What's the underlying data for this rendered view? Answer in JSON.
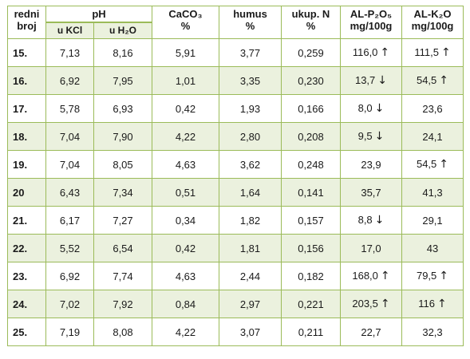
{
  "header": {
    "redni_broj": [
      "redni",
      "broj"
    ],
    "ph": "pH",
    "ph_kcl": "u KCl",
    "ph_h2o": "u H₂O",
    "caco3": [
      "CaCO₃",
      "%"
    ],
    "humus": [
      "humus",
      "%"
    ],
    "ukup_n": [
      "ukup. N",
      "%"
    ],
    "al_p2o5": [
      "AL-P₂O₅",
      "mg/100g"
    ],
    "al_k2o": [
      "AL-K₂O",
      "mg/100g"
    ]
  },
  "rows": [
    {
      "broj": "15.",
      "kcl": "7,13",
      "h2o": "8,16",
      "caco3": "5,91",
      "humus": "3,77",
      "n": "0,259",
      "p": "116,0",
      "p_arrow": "↑",
      "k": "111,5",
      "k_arrow": "↑"
    },
    {
      "broj": "16.",
      "kcl": "6,92",
      "h2o": "7,95",
      "caco3": "1,01",
      "humus": "3,35",
      "n": "0,230",
      "p": "13,7",
      "p_arrow": "↓",
      "k": "54,5",
      "k_arrow": "↑"
    },
    {
      "broj": "17.",
      "kcl": "5,78",
      "h2o": "6,93",
      "caco3": "0,42",
      "humus": "1,93",
      "n": "0,166",
      "p": "8,0",
      "p_arrow": "↓",
      "k": "23,6",
      "k_arrow": ""
    },
    {
      "broj": "18.",
      "kcl": "7,04",
      "h2o": "7,90",
      "caco3": "4,22",
      "humus": "2,80",
      "n": "0,208",
      "p": "9,5",
      "p_arrow": "↓",
      "k": "24,1",
      "k_arrow": ""
    },
    {
      "broj": "19.",
      "kcl": "7,04",
      "h2o": "8,05",
      "caco3": "4,63",
      "humus": "3,62",
      "n": "0,248",
      "p": "23,9",
      "p_arrow": "",
      "k": "54,5",
      "k_arrow": "↑"
    },
    {
      "broj": "20",
      "kcl": "6,43",
      "h2o": "7,34",
      "caco3": "0,51",
      "humus": "1,64",
      "n": "0,141",
      "p": "35,7",
      "p_arrow": "",
      "k": "41,3",
      "k_arrow": ""
    },
    {
      "broj": "21.",
      "kcl": "6,17",
      "h2o": "7,27",
      "caco3": "0,34",
      "humus": "1,82",
      "n": "0,157",
      "p": "8,8",
      "p_arrow": "↓",
      "k": "29,1",
      "k_arrow": ""
    },
    {
      "broj": "22.",
      "kcl": "5,52",
      "h2o": "6,54",
      "caco3": "0,42",
      "humus": "1,81",
      "n": "0,156",
      "p": "17,0",
      "p_arrow": "",
      "k": "43",
      "k_arrow": ""
    },
    {
      "broj": "23.",
      "kcl": "6,92",
      "h2o": "7,74",
      "caco3": "4,63",
      "humus": "2,44",
      "n": "0,182",
      "p": "168,0",
      "p_arrow": "↑",
      "k": "79,5",
      "k_arrow": "↑"
    },
    {
      "broj": "24.",
      "kcl": "7,02",
      "h2o": "7,92",
      "caco3": "0,84",
      "humus": "2,97",
      "n": "0,221",
      "p": "203,5",
      "p_arrow": "↑",
      "k": "116",
      "k_arrow": "↑"
    },
    {
      "broj": "25.",
      "kcl": "7,19",
      "h2o": "8,08",
      "caco3": "4,22",
      "humus": "3,07",
      "n": "0,211",
      "p": "22,7",
      "p_arrow": "",
      "k": "32,3",
      "k_arrow": ""
    }
  ],
  "colors": {
    "row_band": "#ebf1de",
    "border": "#9bbb59"
  }
}
